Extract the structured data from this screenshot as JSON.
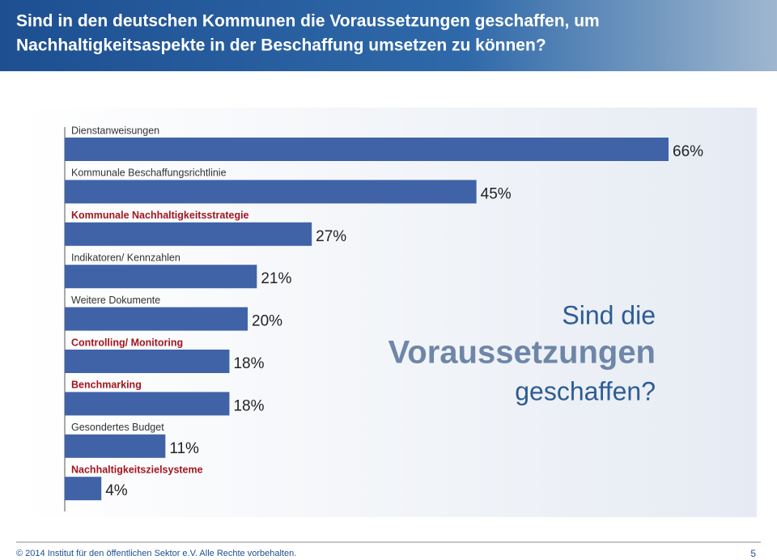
{
  "chart_data": {
    "type": "bar",
    "orientation": "horizontal",
    "title": [
      "Sind in den deutschen Kommunen die Voraussetzungen geschaffen, um",
      "Nachhaltigkeitsaspekte in der Beschaffung umsetzen zu können?"
    ],
    "categories": [
      "Dienstanweisungen",
      "Kommunale Beschaffungsrichtlinie",
      "Kommunale Nachhaltigkeitsstrategie",
      "Indikatoren/ Kennzahlen",
      "Weitere Dokumente",
      "Controlling/ Monitoring",
      "Benchmarking",
      "Gesondertes Budget",
      "Nachhaltigkeitszielsysteme"
    ],
    "values": [
      66,
      45,
      27,
      21,
      20,
      18,
      18,
      11,
      4
    ],
    "value_labels": [
      "66%",
      "45%",
      "27%",
      "21%",
      "20%",
      "18%",
      "18%",
      "11%",
      "4%"
    ],
    "highlighted": [
      false,
      false,
      true,
      false,
      false,
      true,
      true,
      false,
      true
    ],
    "color": "#4063a8",
    "highlight_color": "#a3151f",
    "annotation": [
      "Sind die",
      "Voraussetzungen",
      "geschaffen?"
    ],
    "footer": "© 2014 Institut für den öffentlichen Sektor e.V. Alle Rechte vorbehalten.",
    "page_number": "5"
  }
}
